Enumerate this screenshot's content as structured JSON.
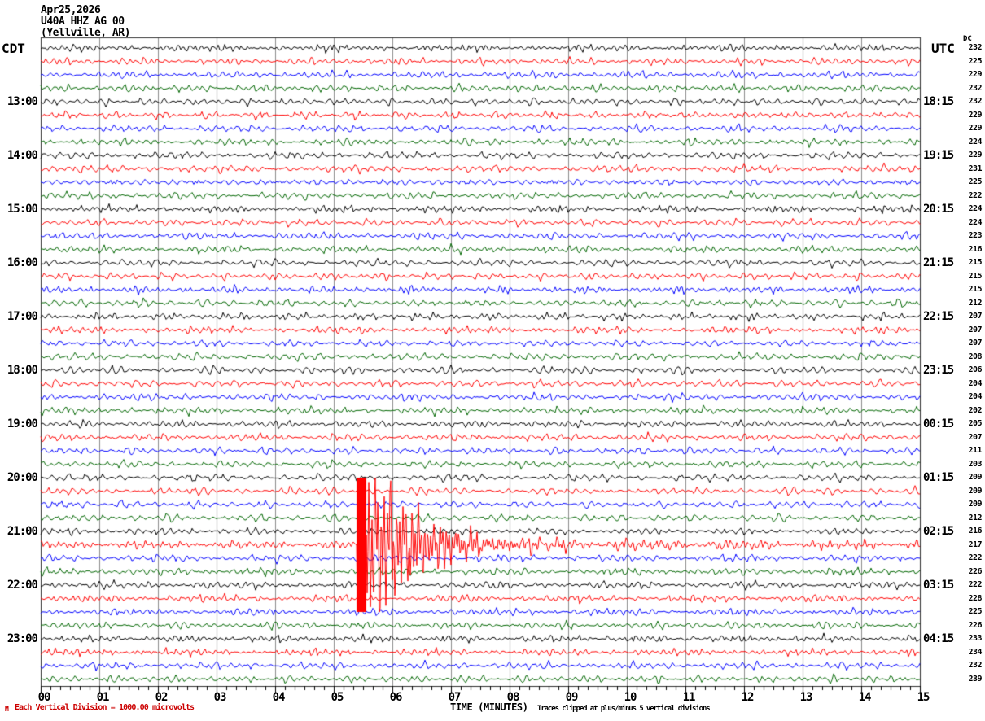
{
  "header": {
    "date": "Apr25,2026",
    "station": "U40A HHZ AG 00",
    "location": "(Yellville, AR)"
  },
  "axes": {
    "left_label": "CDT",
    "right_label": "UTC",
    "dc_label": "DC",
    "left_times": [
      "13:00",
      "14:00",
      "15:00",
      "16:00",
      "17:00",
      "18:00",
      "19:00",
      "20:00",
      "21:00",
      "22:00",
      "23:00"
    ],
    "right_times": [
      "18:15",
      "19:15",
      "20:15",
      "21:15",
      "22:15",
      "23:15",
      "00:15",
      "01:15",
      "02:15",
      "03:15",
      "04:15"
    ],
    "x_tick_labels": [
      "00",
      "01",
      "02",
      "03",
      "04",
      "05",
      "06",
      "07",
      "08",
      "09",
      "10",
      "11",
      "12",
      "13",
      "14",
      "15"
    ],
    "x_axis_label": "TIME (MINUTES)"
  },
  "footer": {
    "logo_glyph": "M",
    "scale_note": "Each Vertical Division = 1000.00 microvolts",
    "clip_note": "Traces clipped at plus/minus 5 vertical divisions"
  },
  "colors": {
    "black": "#000000",
    "red": "#ff0000",
    "blue": "#0000ff",
    "green": "#006600",
    "grid": "#8c8c8c",
    "border": "#303030",
    "note_red": "#cc0000"
  },
  "chart_data": {
    "type": "line",
    "title": "Helicorder seismogram U40A HHZ AG 00 (Yellville, AR) Apr25,2026",
    "xlabel": "TIME (MINUTES)",
    "x_range_minutes": [
      0,
      15
    ],
    "rows": 48,
    "row_duration_minutes": 15,
    "first_row_start_cdt": "12:00",
    "utc_offset_hours": 5,
    "trace_color_cycle": [
      "black",
      "red",
      "blue",
      "green"
    ],
    "microvolts_per_division": 1000,
    "clip_divisions": 5,
    "dc_offsets_microvolts": [
      232,
      225,
      229,
      232,
      232,
      229,
      229,
      224,
      229,
      231,
      225,
      222,
      224,
      224,
      223,
      216,
      215,
      215,
      215,
      212,
      207,
      207,
      207,
      208,
      206,
      204,
      204,
      202,
      205,
      207,
      211,
      203,
      209,
      209,
      209,
      212,
      216,
      217,
      222,
      226,
      222,
      228,
      225,
      226,
      233,
      234,
      232,
      239
    ],
    "background_noise_divisions": 0.25,
    "event": {
      "row_index": 37,
      "row_start_cdt": "21:15",
      "row_color": "red",
      "onset_minute": 5.4,
      "approx_onset_cdt": "21:20",
      "approx_onset_utc": "02:20",
      "clipped": true,
      "peak_amplitude_divisions": 5,
      "coda_decay_minutes": 2
    }
  }
}
